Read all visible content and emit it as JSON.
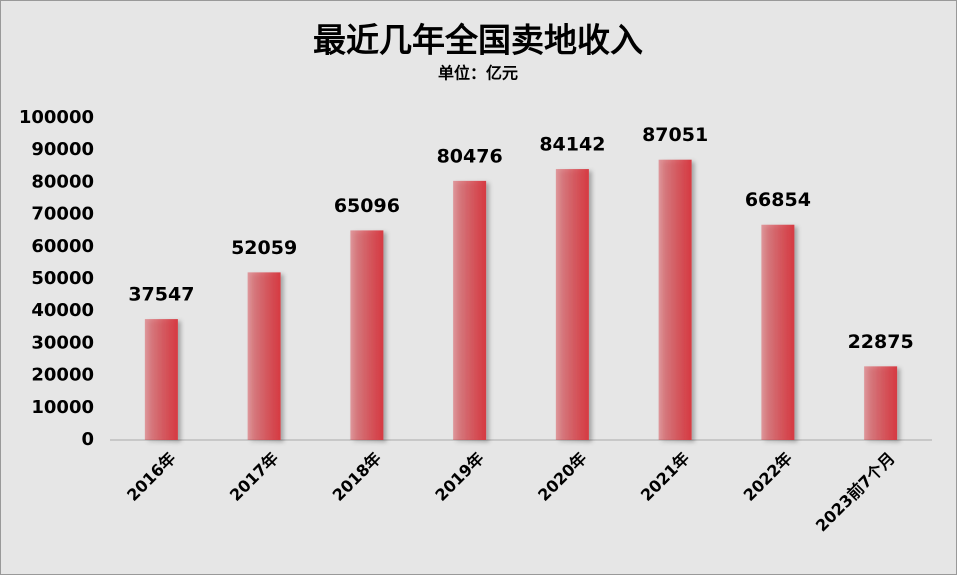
{
  "chart_data": {
    "type": "bar",
    "title": "最近几年全国卖地收入",
    "subtitle": "单位：亿元",
    "categories": [
      "2016年",
      "2017年",
      "2018年",
      "2019年",
      "2020年",
      "2021年",
      "2022年",
      "2023前7个月"
    ],
    "values": [
      37547,
      52059,
      65096,
      80476,
      84142,
      87051,
      66854,
      22875
    ],
    "color": "#d63a42",
    "ylim": [
      0,
      100000
    ],
    "yticks": [
      0,
      10000,
      20000,
      30000,
      40000,
      50000,
      60000,
      70000,
      80000,
      90000,
      100000
    ],
    "grid": false
  }
}
